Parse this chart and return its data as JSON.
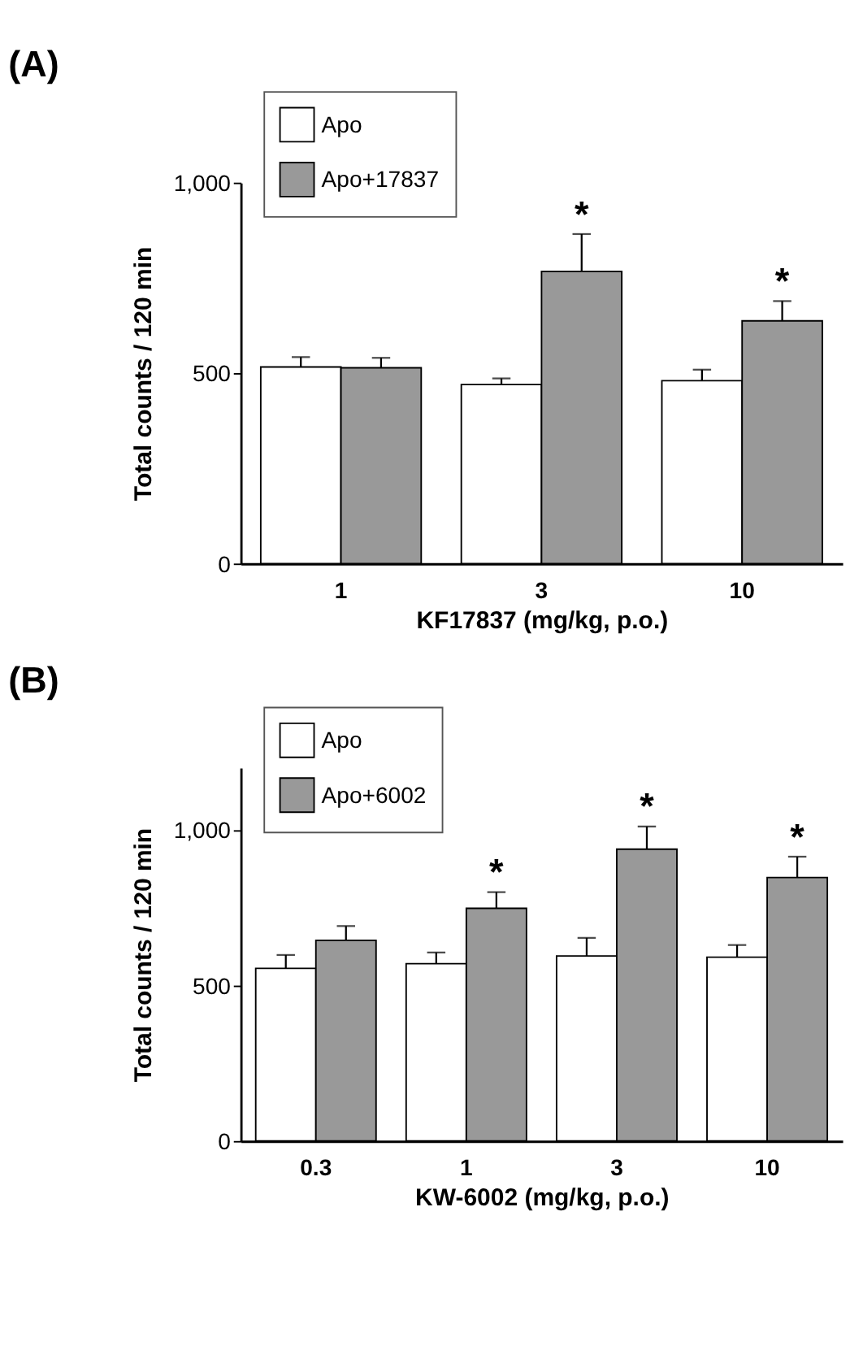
{
  "chart_data": [
    {
      "type": "bar",
      "title": "(A)",
      "xlabel": "KF17837 (mg/kg, p.o.)",
      "ylabel": "Total counts / 120 min",
      "categories": [
        "1",
        "3",
        "10"
      ],
      "ylim": [
        0,
        1000
      ],
      "yticks": [
        0,
        500,
        {
          "value": 1000,
          "label": "1,000"
        }
      ],
      "legend": "top left",
      "grid": false,
      "series": [
        {
          "name": "Apo",
          "color": "#ffffff",
          "values": [
            516,
            470,
            480
          ],
          "errors": [
            [
              516,
              542
            ],
            [
              470,
              486
            ],
            [
              480,
              509
            ]
          ]
        },
        {
          "name": "Apo+17837",
          "color": "#999999",
          "values": [
            514,
            767,
            637
          ],
          "errors": [
            [
              514,
              540
            ],
            [
              767,
              865
            ],
            [
              637,
              689
            ]
          ]
        }
      ],
      "annotations": [
        {
          "text": "*",
          "x": "3",
          "y": 767
        },
        {
          "text": "*",
          "x": "10",
          "y": 637
        }
      ]
    },
    {
      "type": "bar",
      "title": "(B)",
      "xlabel": "KW-6002 (mg/kg, p.o.)",
      "ylabel": "Total counts / 120 min",
      "categories": [
        "0.3",
        "1",
        "3",
        "10"
      ],
      "ylim": [
        0,
        1200
      ],
      "yticks": [
        0,
        500,
        {
          "value": 1000,
          "label": "1,000"
        }
      ],
      "legend": "top left",
      "grid": false,
      "series": [
        {
          "name": "Apo",
          "color": "#ffffff",
          "values": [
            555,
            570,
            595,
            591
          ],
          "errors": [
            [
              555,
              598
            ],
            [
              570,
              606
            ],
            [
              595,
              653
            ],
            [
              591,
              630
            ]
          ]
        },
        {
          "name": "Apo+6002",
          "color": "#999999",
          "values": [
            645,
            748,
            938,
            847
          ],
          "errors": [
            [
              645,
              691
            ],
            [
              748,
              800
            ],
            [
              938,
              1011
            ],
            [
              847,
              914
            ]
          ]
        }
      ],
      "annotations": [
        {
          "text": "*",
          "x": "1",
          "y": 748
        },
        {
          "text": "*",
          "x": "3",
          "y": 938
        },
        {
          "text": "*",
          "x": "10",
          "y": 847
        }
      ]
    }
  ]
}
